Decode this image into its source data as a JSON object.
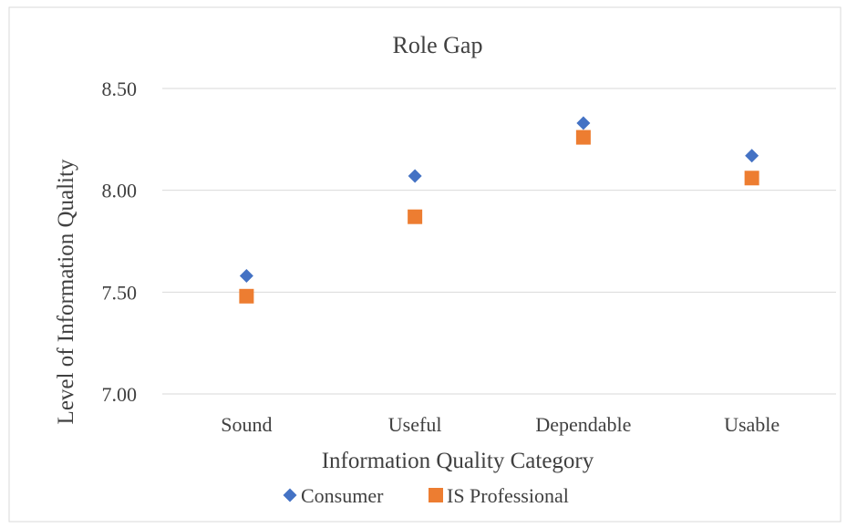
{
  "chart_data": {
    "type": "scatter",
    "title": "Role Gap",
    "xlabel": "Information Quality Category",
    "ylabel": "Level of Information Quality",
    "categories": [
      "Sound",
      "Useful",
      "Dependable",
      "Usable"
    ],
    "ylim": [
      7.0,
      8.5
    ],
    "yticks": [
      "7.00",
      "7.50",
      "8.00",
      "8.50"
    ],
    "grid": true,
    "legend_position": "bottom",
    "series": [
      {
        "name": "Consumer",
        "values": [
          7.58,
          8.07,
          8.33,
          8.17
        ],
        "color": "#4472C4",
        "marker": "diamond"
      },
      {
        "name": "IS Professional",
        "values": [
          7.48,
          7.87,
          8.26,
          8.06
        ],
        "color": "#ED7D31",
        "marker": "square"
      }
    ]
  }
}
